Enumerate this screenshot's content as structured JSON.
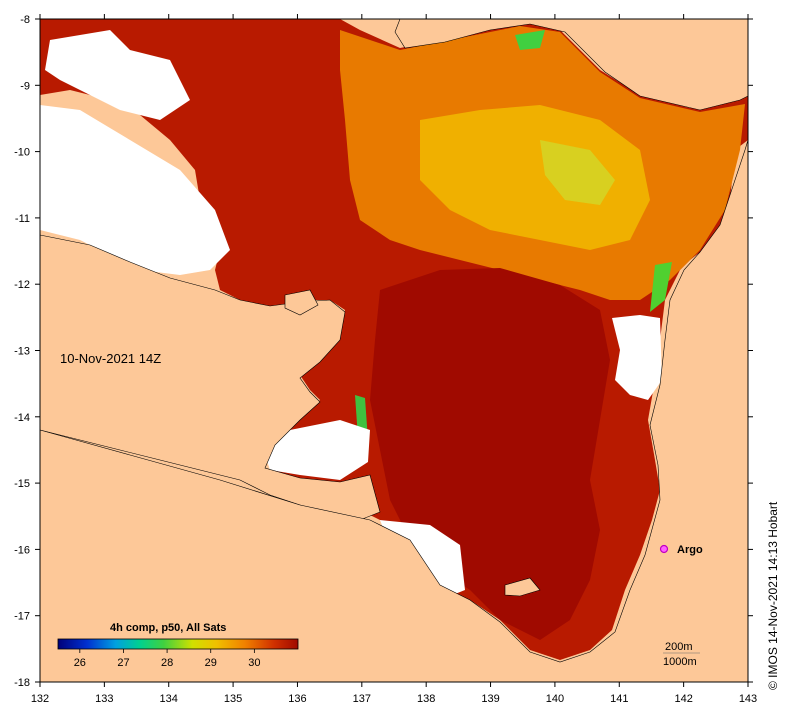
{
  "map": {
    "date_label": "10-Nov-2021 14Z",
    "x_ticks": [
      "132",
      "133",
      "134",
      "135",
      "136",
      "137",
      "138",
      "139",
      "140",
      "141",
      "142",
      "143"
    ],
    "y_ticks": [
      "-8",
      "-9",
      "-10",
      "-11",
      "-12",
      "-13",
      "-14",
      "-15",
      "-16",
      "-17",
      "-18"
    ],
    "colorbar": {
      "title": "4h comp, p50, All Sats",
      "tick_labels": [
        "26",
        "27",
        "28",
        "29",
        "30"
      ],
      "range": [
        25.5,
        31.0
      ]
    },
    "argo": {
      "label": "Argo",
      "lon": 141.7,
      "lat": -15.97
    },
    "scale": {
      "line1": "200m",
      "line2": "1000m"
    },
    "credit": "© IMOS 14-Nov-2021 14:13 Hobart",
    "colors": {
      "land": "#fdc898",
      "no_data": "#ffffff",
      "warmest": "#a30a00",
      "warm": "#d04000",
      "mid": "#f09000",
      "cool": "#e8e000",
      "coolest": "#40d040"
    }
  }
}
